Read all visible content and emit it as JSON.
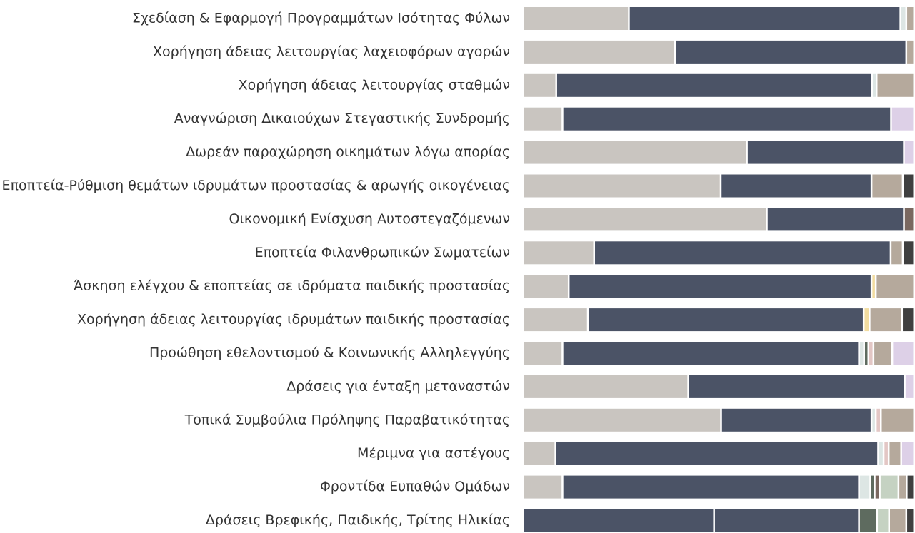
{
  "chart_data": {
    "type": "stacked-bar-horizontal",
    "categories": [
      "Σχεδίαση & Εφαρμογή Προγραμμάτων Ισότητας Φύλων",
      "Χορήγηση άδειας λειτουργίας λαχειοφόρων αγορών",
      "Χορήγηση άδειας λειτουργίας σταθμών",
      "Αναγνώριση Δικαιούχων Στεγαστικής Συνδρομής",
      "Δωρεάν παραχώρηση οικημάτων λόγω απορίας",
      "Εποπτεία-Ρύθμιση θεμάτων ιδρυμάτων προστασίας & αρωγής οικογένειας",
      "Οικονομική Ενίσχυση Αυτοστεγαζόμενων",
      "Εποπτεία Φιλανθρωπικών Σωματείων",
      "Άσκηση ελέγχου & εποπτείας σε ιδρύματα παιδικής προστασίας",
      "Χορήγηση άδειας λειτουργίας ιδρυμάτων παιδικής προστασίας",
      "Προώθηση εθελοντισμού & Κοινωνικής Αλληλεγγύης",
      "Δράσεις για ένταξη μεταναστών",
      "Τοπικά Συμβούλια Πρόληψης Παραβατικότητας",
      "Μέριμνα για αστέγους",
      "Φροντίδα Ευπαθών Ομάδων",
      "Δράσεις Βρεφικής, Παιδικής, Τρίτης Ηλικίας"
    ],
    "series": [
      {
        "color": "#c9c5c0",
        "values": [
          27,
          38.8,
          8.4,
          10,
          57.2,
          50.5,
          62.3,
          18.1,
          11.6,
          16.5,
          10,
          42.2,
          50.6,
          8.2,
          10,
          0
        ]
      },
      {
        "color": "#4b5366",
        "values": [
          69.5,
          59.2,
          80.8,
          84.1,
          40.2,
          38.6,
          35.1,
          75.9,
          77.5,
          70.6,
          75.9,
          55.4,
          38.5,
          82.6,
          75.9,
          48.8
        ]
      },
      {
        "color": "#4b5366",
        "values": [
          0,
          0,
          0,
          0,
          0,
          0,
          0,
          0,
          0,
          0,
          0,
          0,
          0,
          0,
          0,
          37.1
        ]
      },
      {
        "color": "#dde6e4",
        "values": [
          1.5,
          0,
          1.2,
          0,
          0,
          0,
          0,
          0,
          0,
          0,
          1.3,
          0,
          1.1,
          1.4,
          2.9,
          0
        ]
      },
      {
        "color": "#f2dca0",
        "values": [
          0,
          0,
          0,
          0,
          0,
          0,
          0,
          0,
          1.1,
          1.5,
          0,
          0,
          0,
          0,
          0,
          0
        ]
      },
      {
        "color": "#5e6b5f",
        "values": [
          0,
          0,
          0,
          0,
          0,
          0,
          0,
          0,
          0,
          0,
          1.1,
          0,
          0,
          0,
          1.1,
          4.6
        ]
      },
      {
        "color": "#e3c7c5",
        "values": [
          0,
          0,
          0,
          0,
          0,
          0,
          0,
          0,
          0,
          0,
          1.3,
          0,
          1.3,
          1.3,
          0,
          0
        ]
      },
      {
        "color": "#7a6860",
        "values": [
          0,
          0,
          0,
          0,
          0,
          0,
          2.6,
          0,
          0,
          0,
          0,
          0,
          0,
          0,
          1.3,
          0
        ]
      },
      {
        "color": "#c5d2c2",
        "values": [
          0,
          0,
          0,
          0,
          0,
          0,
          0,
          0,
          0,
          0,
          0,
          0,
          0,
          0,
          4.8,
          3.1
        ]
      },
      {
        "color": "#b5a99c",
        "values": [
          2,
          2,
          9.6,
          0,
          0,
          8,
          0,
          3.1,
          9.8,
          8.3,
          4.8,
          0,
          8.5,
          3.2,
          2.1,
          4.4
        ]
      },
      {
        "color": "#ddd0e7",
        "values": [
          0,
          0,
          0,
          5.9,
          2.6,
          0,
          0,
          0,
          0,
          0,
          5.6,
          2.4,
          0,
          3.3,
          0,
          0
        ]
      },
      {
        "color": "#3f3f3f",
        "values": [
          0,
          0,
          0,
          0,
          0,
          2.9,
          0,
          2.9,
          0,
          3.1,
          0,
          0,
          0,
          0,
          1.9,
          2
        ]
      }
    ]
  }
}
